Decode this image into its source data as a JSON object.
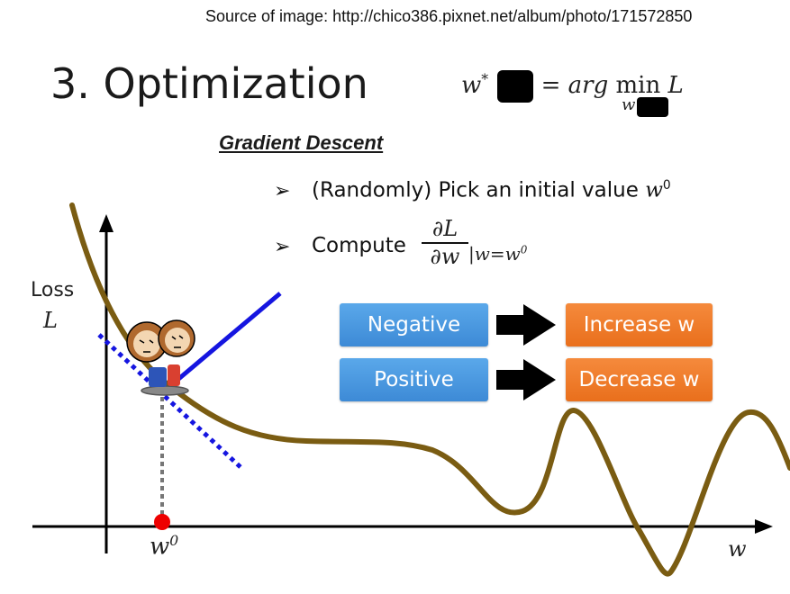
{
  "source_note": "Source of image: http://chico386.pixnet.net/album/photo/171572850",
  "slide": {
    "title": "3. Optimization",
    "formula_lhs": "w",
    "formula_lhs_sup": "*",
    "formula_rhs_italic": "arg",
    "formula_rhs_min": "min",
    "formula_rhs_var": "L",
    "formula_sub": "w",
    "section_title": "Gradient Descent",
    "bullets": [
      {
        "text": "(Randomly) Pick an initial value",
        "math": "w",
        "math_sup": "0"
      },
      {
        "text": "Compute",
        "frac_num": "∂L",
        "frac_den": "∂w",
        "eval": "|w=w",
        "eval_sup": "0"
      }
    ],
    "decision_boxes": [
      {
        "condition": "Negative",
        "action": "Increase w"
      },
      {
        "condition": "Positive",
        "action": "Decrease w"
      }
    ],
    "axis": {
      "y_label_word": "Loss",
      "y_label_var": "L",
      "x_label": "w",
      "point_label": "w",
      "point_label_sup": "0"
    }
  },
  "colors": {
    "curve": "#7a5c12",
    "tangent": "#1515e0",
    "point": "#ee0000",
    "condition_box": "#4a98e0",
    "action_box": "#ef7a28",
    "arrow": "#000000"
  },
  "icons": [
    "bullet-arrow-icon",
    "right-arrow-icon",
    "character-illustration"
  ]
}
